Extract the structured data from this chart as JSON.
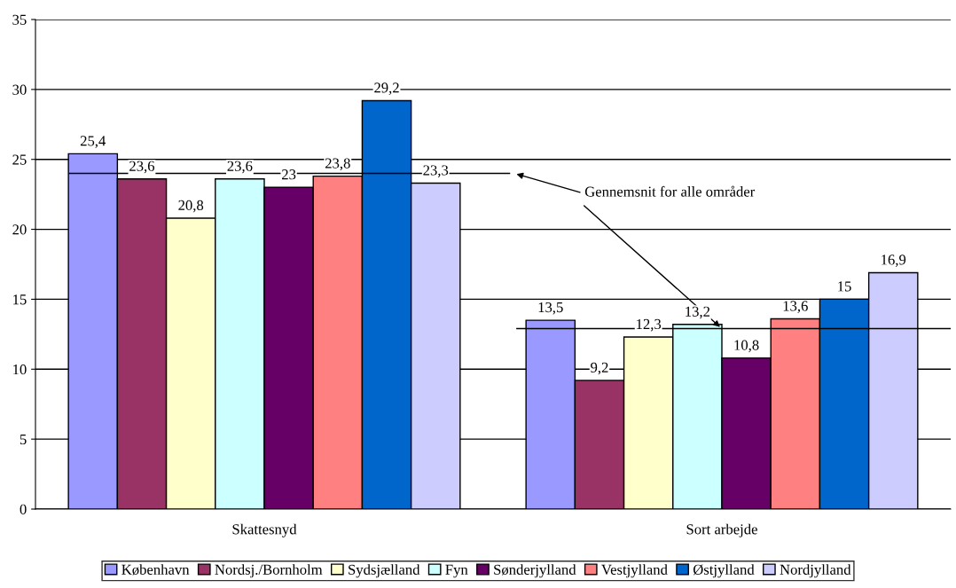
{
  "chart_data": {
    "type": "bar",
    "categories": [
      "Skattesnyd",
      "Sort arbejde"
    ],
    "series": [
      {
        "name": "København",
        "color": "#9999ff",
        "values": [
          25.4,
          13.5
        ],
        "value_labels": [
          "25,4",
          "13,5"
        ]
      },
      {
        "name": "Nordsj./Bornholm",
        "color": "#993366",
        "values": [
          23.6,
          9.2
        ],
        "value_labels": [
          "23,6",
          "9,2"
        ]
      },
      {
        "name": "Sydsjælland",
        "color": "#ffffcc",
        "values": [
          20.8,
          12.3
        ],
        "value_labels": [
          "20,8",
          "12,3"
        ]
      },
      {
        "name": "Fyn",
        "color": "#ccffff",
        "values": [
          23.6,
          13.2
        ],
        "value_labels": [
          "23,6",
          "13,2"
        ]
      },
      {
        "name": "Sønderjylland",
        "color": "#660066",
        "values": [
          23,
          10.8
        ],
        "value_labels": [
          "23",
          "10,8"
        ]
      },
      {
        "name": "Vestjylland",
        "color": "#ff8080",
        "values": [
          23.8,
          13.6
        ],
        "value_labels": [
          "23,8",
          "13,6"
        ]
      },
      {
        "name": "Østjylland",
        "color": "#0066cc",
        "values": [
          29.2,
          15
        ],
        "value_labels": [
          "29,2",
          "15"
        ]
      },
      {
        "name": "Nordjylland",
        "color": "#ccccff",
        "values": [
          23.3,
          16.9
        ],
        "value_labels": [
          "23,3",
          "16,9"
        ]
      }
    ],
    "ylim": [
      0,
      35
    ],
    "yticks": [
      0,
      5,
      10,
      15,
      20,
      25,
      30,
      35
    ],
    "grid": "y",
    "legend": "bottom",
    "ref_lines": [
      {
        "axis": "y",
        "value": 24.0,
        "color": "#000000"
      },
      {
        "axis": "y",
        "value": 12.9,
        "color": "#000000"
      }
    ],
    "annotations": [
      {
        "text": "Gennemsnit for alle områder",
        "x": "Sort arbejde",
        "y": 12.9
      }
    ]
  }
}
